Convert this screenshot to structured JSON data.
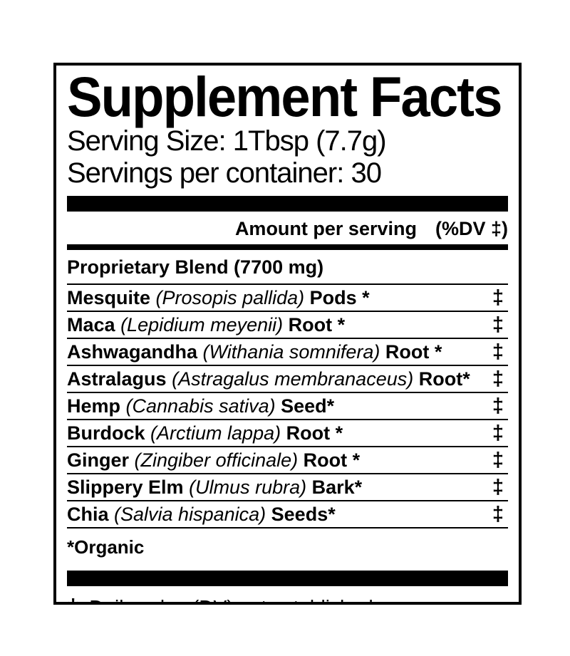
{
  "label": {
    "title": "Supplement Facts",
    "serving_size": "Serving Size: 1Tbsp (7.7g)",
    "servings_per_container": "Servings per container: 30",
    "column_header": {
      "amount": "Amount per serving",
      "dv": "(%DV ‡)"
    },
    "blend": "Proprietary Blend (7700 mg)",
    "ingredients": [
      {
        "name": "Mesquite",
        "latin": "(Prosopis pallida)",
        "part": "Pods *",
        "dv": "‡"
      },
      {
        "name": "Maca",
        "latin": "(Lepidium meyenii)",
        "part": "Root *",
        "dv": "‡"
      },
      {
        "name": "Ashwagandha",
        "latin": "(Withania somnifera)",
        "part": "Root *",
        "dv": "‡"
      },
      {
        "name": "Astralagus",
        "latin": "(Astragalus membranaceus)",
        "part": "Root*",
        "dv": "‡"
      },
      {
        "name": "Hemp",
        "latin": "(Cannabis sativa)",
        "part": "Seed*",
        "dv": "‡"
      },
      {
        "name": "Burdock",
        "latin": "(Arctium lappa)",
        "part": "Root *",
        "dv": "‡"
      },
      {
        "name": "Ginger",
        "latin": "(Zingiber officinale)",
        "part": "Root *",
        "dv": "‡"
      },
      {
        "name": "Slippery Elm",
        "latin": "(Ulmus rubra)",
        "part": "Bark*",
        "dv": "‡"
      },
      {
        "name": "Chia",
        "latin": "(Salvia hispanica)",
        "part": "Seeds*",
        "dv": "‡"
      }
    ],
    "organic_note": "*Organic",
    "footnote_symbol": "‡",
    "footnote_text": "Daily value (DV) not established."
  },
  "colors": {
    "ink": "#000000",
    "background": "#ffffff"
  }
}
